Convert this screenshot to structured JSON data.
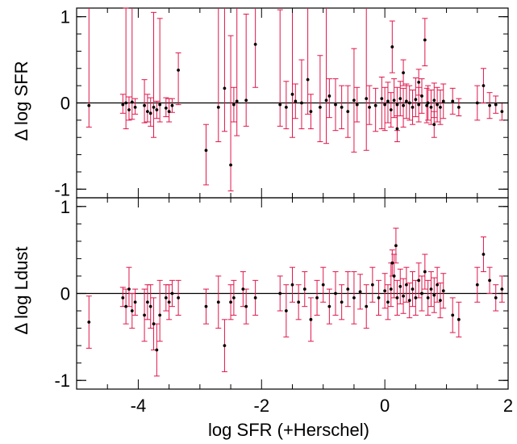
{
  "chart_data": [
    {
      "type": "scatter",
      "ylabel": "Δ log SFR",
      "xlim": [
        -5,
        2
      ],
      "ylim": [
        -1.1,
        1.1
      ],
      "yticks": [
        "1",
        "0",
        "-1"
      ],
      "ytick_values": [
        1,
        0,
        -1
      ],
      "reference_line": 0,
      "points": [
        [
          -4.8,
          -0.03,
          1.15,
          0.25
        ],
        [
          -4.25,
          -0.02,
          0.12,
          0.1
        ],
        [
          -4.2,
          0.0,
          1.1,
          0.3
        ],
        [
          -4.15,
          -0.08,
          0.15,
          0.12
        ],
        [
          -4.1,
          0.01,
          1.2,
          0.2
        ],
        [
          -4.05,
          -0.05,
          0.1,
          0.08
        ],
        [
          -3.9,
          -0.03,
          0.3,
          0.2
        ],
        [
          -3.85,
          -0.1,
          0.2,
          0.12
        ],
        [
          -3.8,
          -0.12,
          0.18,
          0.15
        ],
        [
          -3.75,
          -0.05,
          1.1,
          0.35
        ],
        [
          -3.7,
          -0.08,
          0.1,
          0.1
        ],
        [
          -3.65,
          -0.02,
          1.0,
          0.2
        ],
        [
          -3.55,
          -0.06,
          0.12,
          0.1
        ],
        [
          -3.5,
          -0.1,
          0.15,
          0.12
        ],
        [
          -3.45,
          -0.03,
          0.08,
          0.08
        ],
        [
          -3.35,
          0.38,
          0.2,
          0.4
        ],
        [
          -2.9,
          -0.55,
          0.3,
          0.4
        ],
        [
          -2.7,
          -0.05,
          1.2,
          0.4
        ],
        [
          -2.6,
          0.17,
          1.2,
          0.5
        ],
        [
          -2.5,
          -0.72,
          1.5,
          0.3
        ],
        [
          -2.45,
          -0.02,
          0.2,
          0.2
        ],
        [
          -2.4,
          0.02,
          1.3,
          0.4
        ],
        [
          -2.25,
          0.03,
          1.0,
          0.3
        ],
        [
          -2.1,
          0.68,
          0.6,
          0.5
        ],
        [
          -1.7,
          -0.02,
          1.1,
          0.25
        ],
        [
          -1.6,
          -0.05,
          0.3,
          0.25
        ],
        [
          -1.5,
          0.1,
          1.4,
          0.5
        ],
        [
          -1.45,
          0.02,
          0.2,
          0.2
        ],
        [
          -1.35,
          0.0,
          0.5,
          0.3
        ],
        [
          -1.25,
          0.27,
          1.2,
          0.4
        ],
        [
          -1.2,
          -0.1,
          0.2,
          0.2
        ],
        [
          -1.05,
          -0.05,
          0.6,
          0.4
        ],
        [
          -0.95,
          0.03,
          1.3,
          0.5
        ],
        [
          -0.9,
          0.08,
          0.2,
          0.25
        ],
        [
          -0.8,
          -0.02,
          0.3,
          0.3
        ],
        [
          -0.7,
          -0.05,
          0.25,
          0.25
        ],
        [
          -0.6,
          -0.1,
          0.3,
          0.3
        ],
        [
          -0.5,
          0.03,
          0.6,
          0.6
        ],
        [
          -0.45,
          -0.02,
          0.2,
          0.2
        ],
        [
          -0.3,
          0.05,
          1.3,
          0.6
        ],
        [
          -0.25,
          -0.05,
          0.25,
          0.2
        ],
        [
          -0.15,
          -0.03,
          0.2,
          0.3
        ],
        [
          -0.05,
          0.05,
          0.25,
          0.35
        ],
        [
          0.0,
          -0.02,
          0.2,
          0.3
        ],
        [
          0.05,
          0.02,
          0.22,
          0.25
        ],
        [
          0.1,
          -0.08,
          0.2,
          0.2
        ],
        [
          0.15,
          0.03,
          0.25,
          0.2
        ],
        [
          0.2,
          -0.02,
          0.2,
          0.3
        ],
        [
          0.25,
          0.05,
          0.2,
          0.2
        ],
        [
          0.3,
          -0.03,
          0.2,
          0.25
        ],
        [
          0.35,
          0.02,
          0.2,
          0.2
        ],
        [
          0.4,
          0.0,
          0.2,
          0.2
        ],
        [
          0.45,
          -0.05,
          0.2,
          0.2
        ],
        [
          0.5,
          0.04,
          0.25,
          0.2
        ],
        [
          0.55,
          -0.02,
          0.2,
          0.2
        ],
        [
          0.6,
          0.08,
          0.2,
          0.2
        ],
        [
          0.65,
          0.73,
          0.25,
          0.3
        ],
        [
          0.68,
          -0.03,
          0.2,
          0.2
        ],
        [
          0.7,
          0.0,
          0.2,
          0.2
        ],
        [
          0.75,
          -0.05,
          0.2,
          0.2
        ],
        [
          0.8,
          0.03,
          0.2,
          0.2
        ],
        [
          0.85,
          -0.02,
          0.2,
          0.2
        ],
        [
          0.9,
          -0.05,
          0.2,
          0.2
        ],
        [
          0.95,
          0.02,
          0.2,
          0.2
        ],
        [
          1.1,
          0.02,
          0.15,
          0.15
        ],
        [
          1.2,
          -0.05,
          0.1,
          0.1
        ],
        [
          1.5,
          0.0,
          0.2,
          0.2
        ],
        [
          1.6,
          0.2,
          0.2,
          0.2
        ],
        [
          1.7,
          -0.03,
          0.15,
          0.15
        ],
        [
          1.8,
          -0.02,
          0.1,
          0.1
        ],
        [
          1.9,
          -0.1,
          0.1,
          0.1
        ],
        [
          0.12,
          0.65,
          0.3,
          0.3
        ],
        [
          0.3,
          0.35,
          0.15,
          0.15
        ],
        [
          0.55,
          0.24,
          0.15,
          0.15
        ],
        [
          0.2,
          -0.3,
          0.15,
          0.15
        ],
        [
          0.8,
          -0.25,
          0.15,
          0.15
        ]
      ]
    },
    {
      "type": "scatter",
      "ylabel": "Δ log Ldust",
      "xlabel": "log SFR (+Herschel)",
      "xlim": [
        -5,
        2
      ],
      "ylim": [
        -1.1,
        1.1
      ],
      "xticks": [
        "-4",
        "-2",
        "0",
        "2"
      ],
      "xtick_values": [
        -4,
        -2,
        0,
        2
      ],
      "yticks": [
        "1",
        "0",
        "-1"
      ],
      "ytick_values": [
        1,
        0,
        -1
      ],
      "reference_line": 0,
      "points": [
        [
          -4.8,
          -0.33,
          0.3,
          0.3
        ],
        [
          -4.25,
          -0.05,
          0.12,
          0.1
        ],
        [
          -4.2,
          -0.15,
          0.2,
          0.2
        ],
        [
          -4.15,
          0.05,
          0.25,
          0.2
        ],
        [
          -4.1,
          -0.2,
          0.2,
          0.2
        ],
        [
          -4.05,
          -0.1,
          0.15,
          0.15
        ],
        [
          -3.9,
          -0.25,
          0.3,
          0.3
        ],
        [
          -3.85,
          -0.1,
          0.2,
          0.2
        ],
        [
          -3.8,
          -0.15,
          0.25,
          0.25
        ],
        [
          -3.75,
          -0.35,
          0.3,
          0.3
        ],
        [
          -3.7,
          -0.65,
          0.3,
          0.3
        ],
        [
          -3.65,
          -0.25,
          0.4,
          0.3
        ],
        [
          -3.55,
          -0.05,
          0.15,
          0.15
        ],
        [
          -3.5,
          -0.1,
          0.2,
          0.2
        ],
        [
          -3.45,
          0.0,
          0.15,
          0.15
        ],
        [
          -3.35,
          -0.05,
          0.2,
          0.2
        ],
        [
          -2.9,
          -0.15,
          0.2,
          0.2
        ],
        [
          -2.7,
          -0.1,
          0.3,
          0.3
        ],
        [
          -2.6,
          -0.6,
          0.3,
          0.3
        ],
        [
          -2.5,
          -0.1,
          0.2,
          0.2
        ],
        [
          -2.45,
          -0.05,
          0.2,
          0.2
        ],
        [
          -2.3,
          0.05,
          0.2,
          0.2
        ],
        [
          -2.25,
          -0.15,
          0.2,
          0.2
        ],
        [
          -2.1,
          -0.05,
          0.2,
          0.2
        ],
        [
          -1.7,
          0.0,
          0.2,
          0.2
        ],
        [
          -1.6,
          -0.2,
          0.3,
          0.3
        ],
        [
          -1.5,
          0.1,
          0.2,
          0.2
        ],
        [
          -1.4,
          -0.1,
          0.2,
          0.2
        ],
        [
          -1.3,
          0.05,
          0.2,
          0.2
        ],
        [
          -1.2,
          -0.3,
          0.25,
          0.25
        ],
        [
          -1.1,
          -0.05,
          0.2,
          0.2
        ],
        [
          -1.0,
          0.1,
          0.2,
          0.2
        ],
        [
          -0.9,
          -0.15,
          0.2,
          0.2
        ],
        [
          -0.8,
          0.0,
          0.25,
          0.25
        ],
        [
          -0.7,
          -0.1,
          0.2,
          0.2
        ],
        [
          -0.6,
          0.05,
          0.2,
          0.2
        ],
        [
          -0.5,
          -0.05,
          0.3,
          0.3
        ],
        [
          -0.4,
          0.02,
          0.2,
          0.2
        ],
        [
          -0.3,
          -0.15,
          0.25,
          0.25
        ],
        [
          -0.2,
          0.1,
          0.2,
          0.2
        ],
        [
          -0.1,
          -0.05,
          0.2,
          0.2
        ],
        [
          0.0,
          0.03,
          0.2,
          0.2
        ],
        [
          0.05,
          -0.1,
          0.2,
          0.2
        ],
        [
          0.1,
          0.05,
          0.3,
          0.2
        ],
        [
          0.15,
          0.2,
          0.25,
          0.25
        ],
        [
          0.2,
          -0.05,
          0.2,
          0.2
        ],
        [
          0.25,
          0.08,
          0.2,
          0.2
        ],
        [
          0.3,
          -0.03,
          0.2,
          0.2
        ],
        [
          0.35,
          0.1,
          0.2,
          0.2
        ],
        [
          0.4,
          -0.08,
          0.2,
          0.2
        ],
        [
          0.45,
          0.05,
          0.2,
          0.2
        ],
        [
          0.5,
          -0.05,
          0.2,
          0.2
        ],
        [
          0.55,
          0.15,
          0.2,
          0.2
        ],
        [
          0.6,
          0.0,
          0.2,
          0.2
        ],
        [
          0.65,
          0.25,
          0.2,
          0.2
        ],
        [
          0.7,
          -0.05,
          0.2,
          0.2
        ],
        [
          0.75,
          0.05,
          0.2,
          0.2
        ],
        [
          0.8,
          -0.02,
          0.2,
          0.2
        ],
        [
          0.85,
          0.1,
          0.2,
          0.2
        ],
        [
          0.9,
          -0.08,
          0.2,
          0.2
        ],
        [
          0.95,
          0.03,
          0.2,
          0.2
        ],
        [
          1.1,
          -0.25,
          0.2,
          0.2
        ],
        [
          1.2,
          -0.3,
          0.2,
          0.2
        ],
        [
          1.5,
          0.1,
          0.2,
          0.2
        ],
        [
          1.6,
          0.45,
          0.2,
          0.2
        ],
        [
          1.7,
          0.15,
          0.15,
          0.15
        ],
        [
          1.8,
          -0.05,
          0.15,
          0.15
        ],
        [
          1.9,
          0.05,
          0.15,
          0.15
        ],
        [
          0.18,
          0.55,
          0.2,
          0.2
        ],
        [
          0.12,
          0.35,
          0.15,
          0.15
        ]
      ]
    }
  ]
}
